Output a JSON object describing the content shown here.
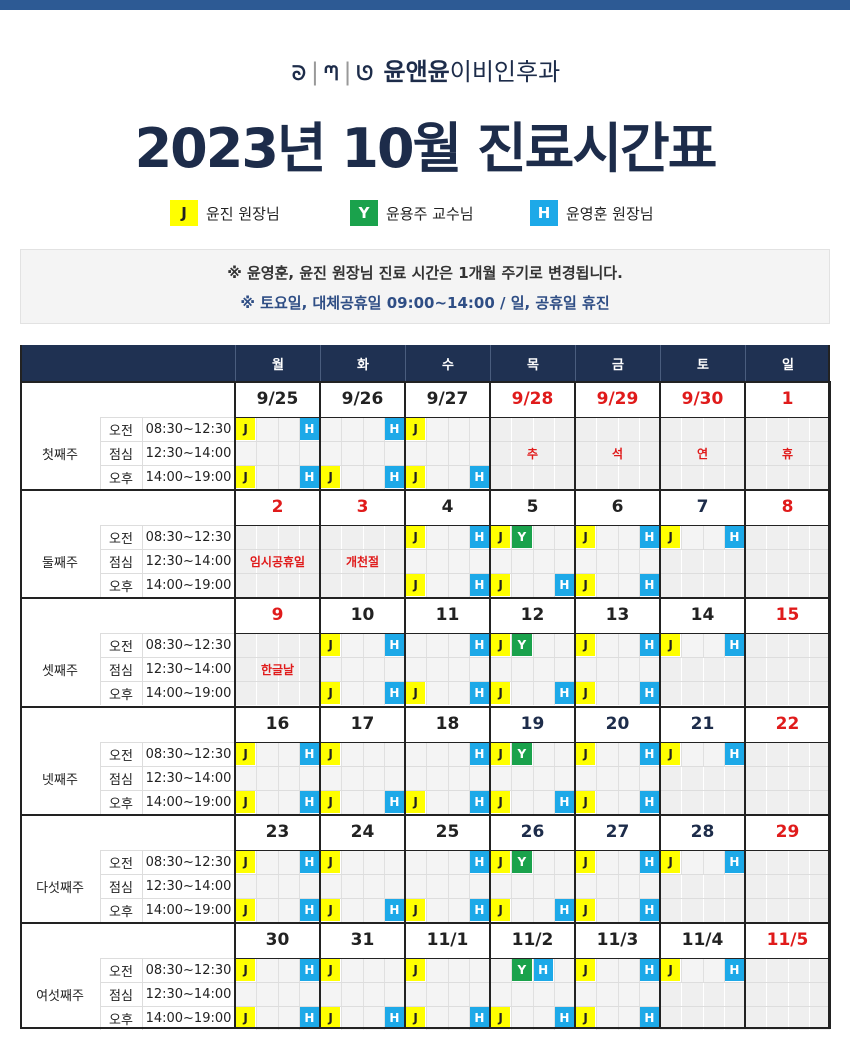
{
  "brand": {
    "name_bold": "윤앤윤",
    "name_rest": "이비인후과"
  },
  "title": "2023년 10월 진료시간표",
  "legend": [
    {
      "code": "J",
      "label": "윤진 원장님",
      "color": "#ffff00",
      "text_color": "#222222"
    },
    {
      "code": "Y",
      "label": "윤용주 교수님",
      "color": "#1aa24c",
      "text_color": "#ffffff"
    },
    {
      "code": "H",
      "label": "윤영훈 원장님",
      "color": "#1da9e8",
      "text_color": "#ffffff"
    }
  ],
  "notice": {
    "line1": "※ 윤영훈, 윤진 원장님 진료 시간은 1개월 주기로 변경됩니다.",
    "line2": "※ 토요일, 대체공휴일  09:00~14:00 / 일, 공휴일 휴진"
  },
  "colors": {
    "header_bg": "#1f3152",
    "navy_text": "#1d2c4a",
    "holiday_text": "#e01b1b",
    "closed_bg": "#efefef",
    "J": "#ffff00",
    "Y": "#1aa24c",
    "H": "#1da9e8"
  },
  "days": [
    "월",
    "화",
    "수",
    "목",
    "금",
    "토",
    "일"
  ],
  "periods": [
    {
      "name": "오전",
      "time": "08:30~12:30"
    },
    {
      "name": "점심",
      "time": "12:30~14:00"
    },
    {
      "name": "오후",
      "time": "14:00~19:00"
    }
  ],
  "weeks": [
    {
      "label": "첫째주",
      "dates": [
        {
          "text": "9/25",
          "color": "black"
        },
        {
          "text": "9/26",
          "color": "black"
        },
        {
          "text": "9/27",
          "color": "black"
        },
        {
          "text": "9/28",
          "color": "red",
          "closed": true,
          "note": [
            "",
            "추",
            ""
          ]
        },
        {
          "text": "9/29",
          "color": "red",
          "closed": true,
          "note": [
            "",
            "석",
            ""
          ]
        },
        {
          "text": "9/30",
          "color": "red",
          "closed": true,
          "note": [
            "",
            "연",
            ""
          ]
        },
        {
          "text": "1",
          "color": "red",
          "closed": true,
          "note": [
            "",
            "휴",
            ""
          ]
        }
      ],
      "slots": [
        [
          "J--H",
          "---H",
          "J---",
          "",
          "",
          "",
          ""
        ],
        [
          "----",
          "----",
          "----",
          "",
          "",
          "",
          ""
        ],
        [
          "J--H",
          "J--H",
          "J--H",
          "",
          "",
          "",
          ""
        ]
      ]
    },
    {
      "label": "둘째주",
      "dates": [
        {
          "text": "2",
          "color": "red",
          "closed": true,
          "note": [
            "",
            "임시공휴일",
            ""
          ]
        },
        {
          "text": "3",
          "color": "red",
          "closed": true,
          "note": [
            "",
            "개천절",
            ""
          ]
        },
        {
          "text": "4",
          "color": "black"
        },
        {
          "text": "5",
          "color": "black"
        },
        {
          "text": "6",
          "color": "black"
        },
        {
          "text": "7",
          "color": "navy",
          "closed_rows": [
            false,
            true,
            true
          ]
        },
        {
          "text": "8",
          "color": "red",
          "closed": true,
          "note": [
            "",
            "",
            ""
          ]
        }
      ],
      "slots": [
        [
          "",
          "",
          "J--H",
          "JY--",
          "J--H",
          "J--H",
          ""
        ],
        [
          "",
          "",
          "----",
          "----",
          "----",
          "",
          ""
        ],
        [
          "",
          "",
          "J--H",
          "J--H",
          "J--H",
          "",
          ""
        ]
      ]
    },
    {
      "label": "셋째주",
      "dates": [
        {
          "text": "9",
          "color": "red",
          "closed": true,
          "note": [
            "",
            "한글날",
            ""
          ]
        },
        {
          "text": "10",
          "color": "black"
        },
        {
          "text": "11",
          "color": "black"
        },
        {
          "text": "12",
          "color": "black"
        },
        {
          "text": "13",
          "color": "black"
        },
        {
          "text": "14",
          "color": "black",
          "closed_rows": [
            false,
            true,
            true
          ]
        },
        {
          "text": "15",
          "color": "red",
          "closed": true,
          "note": [
            "",
            "",
            ""
          ]
        }
      ],
      "slots": [
        [
          "",
          "J--H",
          "---H",
          "JY--",
          "J--H",
          "J--H",
          ""
        ],
        [
          "",
          "----",
          "----",
          "----",
          "----",
          "",
          ""
        ],
        [
          "",
          "J--H",
          "J--H",
          "J--H",
          "J--H",
          "",
          ""
        ]
      ]
    },
    {
      "label": "넷째주",
      "dates": [
        {
          "text": "16",
          "color": "black"
        },
        {
          "text": "17",
          "color": "black"
        },
        {
          "text": "18",
          "color": "black"
        },
        {
          "text": "19",
          "color": "navy"
        },
        {
          "text": "20",
          "color": "navy"
        },
        {
          "text": "21",
          "color": "navy",
          "closed_rows": [
            false,
            true,
            true
          ]
        },
        {
          "text": "22",
          "color": "red",
          "closed": true,
          "note": [
            "",
            "",
            ""
          ]
        }
      ],
      "slots": [
        [
          "J--H",
          "J---",
          "---H",
          "JY--",
          "J--H",
          "J--H",
          ""
        ],
        [
          "----",
          "----",
          "----",
          "----",
          "----",
          "",
          ""
        ],
        [
          "J--H",
          "J--H",
          "J--H",
          "J--H",
          "J--H",
          "",
          ""
        ]
      ]
    },
    {
      "label": "다섯째주",
      "dates": [
        {
          "text": "23",
          "color": "black"
        },
        {
          "text": "24",
          "color": "black"
        },
        {
          "text": "25",
          "color": "black"
        },
        {
          "text": "26",
          "color": "navy"
        },
        {
          "text": "27",
          "color": "navy"
        },
        {
          "text": "28",
          "color": "navy",
          "closed_rows": [
            false,
            true,
            true
          ]
        },
        {
          "text": "29",
          "color": "red",
          "closed": true,
          "note": [
            "",
            "",
            ""
          ]
        }
      ],
      "slots": [
        [
          "J--H",
          "J---",
          "---H",
          "JY--",
          "J--H",
          "J--H",
          ""
        ],
        [
          "----",
          "----",
          "----",
          "----",
          "----",
          "",
          ""
        ],
        [
          "J--H",
          "J--H",
          "J--H",
          "J--H",
          "J--H",
          "",
          ""
        ]
      ]
    },
    {
      "label": "여섯째주",
      "dates": [
        {
          "text": "30",
          "color": "black"
        },
        {
          "text": "31",
          "color": "black"
        },
        {
          "text": "11/1",
          "color": "black"
        },
        {
          "text": "11/2",
          "color": "black"
        },
        {
          "text": "11/3",
          "color": "black"
        },
        {
          "text": "11/4",
          "color": "black",
          "closed_rows": [
            false,
            true,
            true
          ]
        },
        {
          "text": "11/5",
          "color": "red",
          "closed": true,
          "note": [
            "",
            "",
            ""
          ]
        }
      ],
      "slots": [
        [
          "J--H",
          "J---",
          "J---",
          "-YH-",
          "J--H",
          "J--H",
          ""
        ],
        [
          "----",
          "----",
          "----",
          "----",
          "----",
          "",
          ""
        ],
        [
          "J--H",
          "J--H",
          "J--H",
          "J--H",
          "J--H",
          "",
          ""
        ]
      ]
    }
  ]
}
